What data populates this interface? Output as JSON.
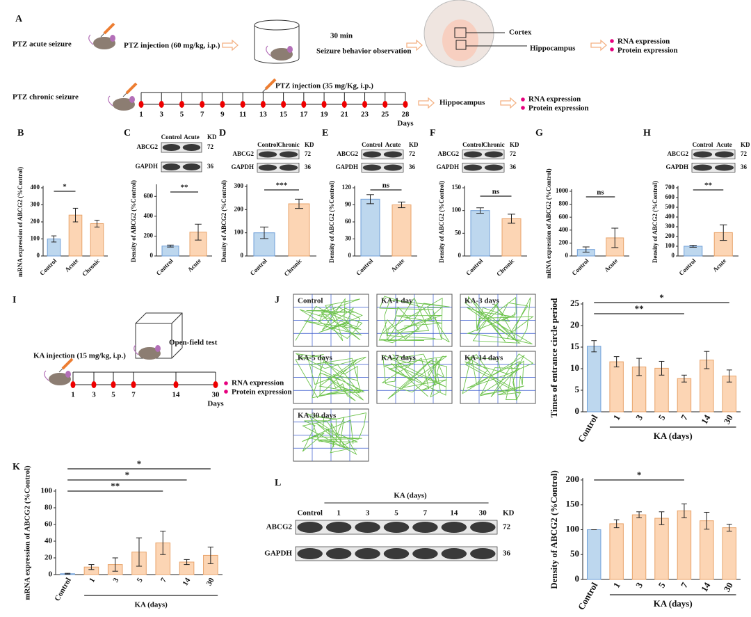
{
  "panel_labels": [
    "A",
    "B",
    "C",
    "D",
    "E",
    "F",
    "G",
    "H",
    "I",
    "J",
    "K",
    "L"
  ],
  "panel_a": {
    "acute_label": "PTZ acute seizure",
    "acute_injection": "PTZ injection (60 mg/kg, i.p.)",
    "interval": "30 min",
    "observation": "Seizure behavior observation",
    "regions": [
      "Cortex",
      "Hippocampus"
    ],
    "outputs": [
      "RNA expression",
      "Protein expression"
    ],
    "chronic_label": "PTZ chronic seizure",
    "chronic_injection": "PTZ injection (35 mg/Kg, i.p.)",
    "days": [
      "1",
      "3",
      "5",
      "7",
      "9",
      "11",
      "13",
      "15",
      "17",
      "19",
      "21",
      "23",
      "25",
      "28"
    ],
    "days_label": "Days",
    "chronic_region": "Hippocampus",
    "chronic_outputs": [
      "RNA expression",
      "Protein expression"
    ]
  },
  "panel_i": {
    "injection": "KA injection (15 mg/kg, i.p.)",
    "test": "Open-field test",
    "days": [
      "1",
      "3",
      "5",
      "7",
      "14",
      "30"
    ],
    "days_label": "Days",
    "outputs": [
      "RNA expression",
      "Protein expression"
    ]
  },
  "trajectories": [
    "Control",
    "KA-1 day",
    "KA-3 days",
    "KA-5 days",
    "KA-7 days",
    "KA-14 days",
    "KA-30 days"
  ],
  "blots": {
    "c": {
      "lanes": [
        "Control",
        "Acute"
      ],
      "kd": "KD",
      "rows": [
        "ABCG2",
        "GAPDH"
      ],
      "sizes": [
        "72",
        "36"
      ]
    },
    "d": {
      "lanes": [
        "Control",
        "Chronic"
      ],
      "kd": "KD",
      "rows": [
        "ABCG2",
        "GAPDH"
      ],
      "sizes": [
        "72",
        "36"
      ]
    },
    "e": {
      "lanes": [
        "Control",
        "Acute"
      ],
      "kd": "KD",
      "rows": [
        "ABCG2",
        "GAPDH"
      ],
      "sizes": [
        "72",
        "36"
      ]
    },
    "f": {
      "lanes": [
        "Control",
        "Chronic"
      ],
      "kd": "KD",
      "rows": [
        "ABCG2",
        "GAPDH"
      ],
      "sizes": [
        "72",
        "36"
      ]
    },
    "h": {
      "lanes": [
        "Control",
        "Acute"
      ],
      "kd": "KD",
      "rows": [
        "ABCG2",
        "GAPDH"
      ],
      "sizes": [
        "72",
        "36"
      ]
    },
    "l": {
      "group": "KA (days)",
      "lanes": [
        "Control",
        "1",
        "3",
        "5",
        "7",
        "14",
        "30"
      ],
      "kd": "KD",
      "rows": [
        "ABCG2",
        "GAPDH"
      ],
      "sizes": [
        "72",
        "36"
      ]
    }
  },
  "chart_data": [
    {
      "type": "bar",
      "ylabel": "mRNA expression of ABCG2 (%Control)",
      "categories": [
        "Control",
        "Acute",
        "Chronic"
      ],
      "values": [
        100,
        240,
        190
      ],
      "errors": [
        18,
        40,
        20
      ],
      "colors": [
        "#bdd7ee",
        "#fcd5b4",
        "#fcd5b4"
      ],
      "ylim": [
        0,
        400
      ],
      "yticks": [
        0,
        100,
        200,
        300,
        400
      ],
      "significance": [
        {
          "label": "*",
          "pair": [
            "Control",
            "Acute"
          ]
        }
      ]
    },
    {
      "type": "bar",
      "ylabel": "Density of ABCG2 (%Control)",
      "categories": [
        "Control",
        "Acute"
      ],
      "values": [
        100,
        240
      ],
      "errors": [
        10,
        80
      ],
      "colors": [
        "#bdd7ee",
        "#fcd5b4"
      ],
      "ylim": [
        0,
        700
      ],
      "yticks": [
        0,
        200,
        400,
        600
      ],
      "significance": [
        {
          "label": "**",
          "pair": [
            "Control",
            "Acute"
          ]
        }
      ]
    },
    {
      "type": "bar",
      "ylabel": "Density of ABCG2 (%Control)",
      "categories": [
        "Control",
        "Chronic"
      ],
      "values": [
        100,
        225
      ],
      "errors": [
        25,
        20
      ],
      "colors": [
        "#bdd7ee",
        "#fcd5b4"
      ],
      "ylim": [
        0,
        300
      ],
      "yticks": [
        0,
        100,
        200,
        300
      ],
      "significance": [
        {
          "label": "***",
          "pair": [
            "Control",
            "Chronic"
          ]
        }
      ]
    },
    {
      "type": "bar",
      "ylabel": "Density of ABCG2 (%Control)",
      "categories": [
        "Control",
        "Acute"
      ],
      "values": [
        100,
        90
      ],
      "errors": [
        8,
        5
      ],
      "colors": [
        "#bdd7ee",
        "#fcd5b4"
      ],
      "ylim": [
        0,
        120
      ],
      "yticks": [
        0,
        30,
        60,
        90,
        120
      ],
      "significance": [
        {
          "label": "ns",
          "pair": [
            "Control",
            "Acute"
          ]
        }
      ]
    },
    {
      "type": "bar",
      "ylabel": "Density of ABCG2 (%Control)",
      "categories": [
        "Control",
        "Chronic"
      ],
      "values": [
        100,
        82
      ],
      "errors": [
        6,
        10
      ],
      "colors": [
        "#bdd7ee",
        "#fcd5b4"
      ],
      "ylim": [
        0,
        150
      ],
      "yticks": [
        0,
        50,
        100,
        150
      ],
      "significance": [
        {
          "label": "ns",
          "pair": [
            "Control",
            "Chronic"
          ]
        }
      ]
    },
    {
      "type": "bar",
      "ylabel": "mRNA expression of ABCG2 (%Control)",
      "categories": [
        "Control",
        "Acute"
      ],
      "values": [
        100,
        280
      ],
      "errors": [
        40,
        150
      ],
      "colors": [
        "#bdd7ee",
        "#fcd5b4"
      ],
      "ylim": [
        0,
        1000
      ],
      "yticks": [
        0,
        200,
        400,
        600,
        800,
        1000
      ],
      "significance": [
        {
          "label": "ns",
          "pair": [
            "Control",
            "Acute"
          ]
        }
      ]
    },
    {
      "type": "bar",
      "ylabel": "Density of ABCG2 (%Control)",
      "categories": [
        "Control",
        "Acute"
      ],
      "values": [
        100,
        240
      ],
      "errors": [
        10,
        80
      ],
      "colors": [
        "#bdd7ee",
        "#fcd5b4"
      ],
      "ylim": [
        0,
        700
      ],
      "yticks": [
        0,
        100,
        200,
        300,
        400,
        500,
        600,
        700
      ],
      "significance": [
        {
          "label": "**",
          "pair": [
            "Control",
            "Acute"
          ]
        }
      ]
    },
    {
      "type": "bar",
      "ylabel": "Times of entrance circle period",
      "categories": [
        "Control",
        "1",
        "3",
        "5",
        "7",
        "14",
        "30"
      ],
      "values": [
        15.2,
        11.6,
        10.4,
        10.1,
        7.7,
        12.0,
        8.3
      ],
      "errors": [
        1.3,
        1.2,
        2.0,
        1.6,
        0.8,
        2.0,
        1.4
      ],
      "colors": [
        "#bdd7ee",
        "#fcd5b4",
        "#fcd5b4",
        "#fcd5b4",
        "#fcd5b4",
        "#fcd5b4",
        "#fcd5b4"
      ],
      "ylim": [
        0,
        25
      ],
      "yticks": [
        0,
        5,
        10,
        15,
        20,
        25
      ],
      "x_group_label": "KA (days)",
      "significance": [
        {
          "label": "**",
          "pair": [
            "Control",
            "7"
          ]
        },
        {
          "label": "*",
          "pair": [
            "Control",
            "30"
          ]
        }
      ]
    },
    {
      "type": "bar",
      "ylabel": "mRNA expression of ABCG2 (%Control)",
      "categories": [
        "Control",
        "1",
        "3",
        "5",
        "7",
        "14",
        "30"
      ],
      "values": [
        1,
        9,
        12,
        27,
        38,
        15,
        23
      ],
      "errors": [
        0.5,
        3,
        8,
        17,
        14,
        3,
        10
      ],
      "colors": [
        "#bdd7ee",
        "#fcd5b4",
        "#fcd5b4",
        "#fcd5b4",
        "#fcd5b4",
        "#fcd5b4",
        "#fcd5b4"
      ],
      "ylim": [
        0,
        100
      ],
      "yticks": [
        0,
        20,
        40,
        60,
        80,
        100
      ],
      "x_group_label": "KA (days)",
      "significance": [
        {
          "label": "**",
          "pair": [
            "Control",
            "7"
          ]
        },
        {
          "label": "*",
          "pair": [
            "Control",
            "14"
          ]
        },
        {
          "label": "*",
          "pair": [
            "Control",
            "30"
          ]
        }
      ]
    },
    {
      "type": "bar",
      "ylabel": "Density of ABCG2 (%Control)",
      "categories": [
        "Control",
        "1",
        "3",
        "5",
        "7",
        "14",
        "30"
      ],
      "values": [
        100,
        112,
        130,
        123,
        138,
        118,
        104
      ],
      "errors": [
        0,
        8,
        6,
        13,
        14,
        17,
        7
      ],
      "colors": [
        "#bdd7ee",
        "#fcd5b4",
        "#fcd5b4",
        "#fcd5b4",
        "#fcd5b4",
        "#fcd5b4",
        "#fcd5b4"
      ],
      "ylim": [
        0,
        200
      ],
      "yticks": [
        0,
        50,
        100,
        150,
        200
      ],
      "x_group_label": "KA (days)",
      "significance": [
        {
          "label": "*",
          "pair": [
            "Control",
            "7"
          ]
        }
      ]
    }
  ]
}
